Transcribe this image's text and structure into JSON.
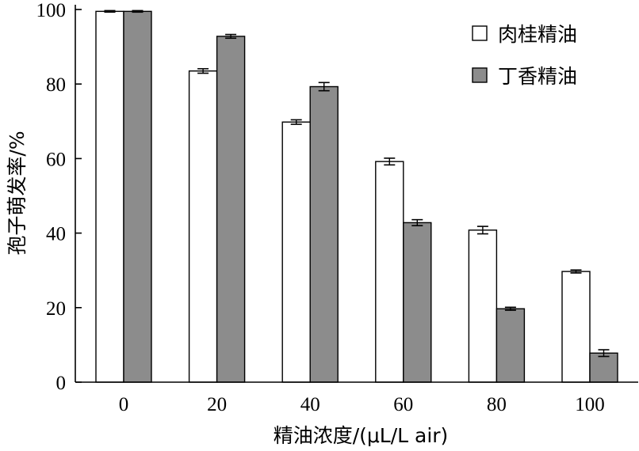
{
  "chart_data": {
    "type": "bar",
    "xlabel": "精油浓度/(μL/L air)",
    "ylabel": "孢子萌发率/%",
    "categories": [
      "0",
      "20",
      "40",
      "60",
      "80",
      "100"
    ],
    "ylim": [
      0,
      100
    ],
    "yticks": [
      "0",
      "20",
      "40",
      "60",
      "80",
      "100"
    ],
    "series": [
      {
        "name": "肉桂精油",
        "color": "#ffffff",
        "values": [
          99.5,
          83.5,
          69.8,
          59.2,
          40.8,
          29.7
        ],
        "errors": [
          0.2,
          0.6,
          0.6,
          0.9,
          1.0,
          0.4
        ]
      },
      {
        "name": "丁香精油",
        "color": "#8c8c8c",
        "values": [
          99.5,
          92.8,
          79.3,
          42.8,
          19.7,
          7.8
        ],
        "errors": [
          0.2,
          0.5,
          1.1,
          0.8,
          0.4,
          0.9
        ]
      }
    ],
    "legend": "top-right",
    "grid": false
  }
}
